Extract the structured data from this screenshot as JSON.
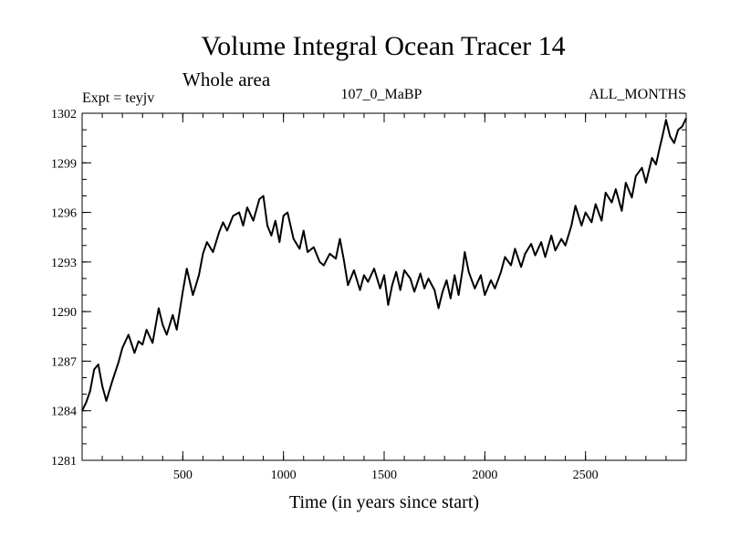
{
  "chart_data": {
    "type": "line",
    "title": "Volume Integral Ocean Tracer 14",
    "subtitle": "Whole area",
    "expt_label": "Expt = teyjv",
    "center_label": "107_0_MaBP",
    "right_label": "ALL_MONTHS",
    "xlabel": "Time (in years since start)",
    "ylabel": "",
    "xlim": [
      0,
      3000
    ],
    "ylim": [
      1281,
      1302
    ],
    "x_ticks": [
      500,
      1000,
      1500,
      2000,
      2500
    ],
    "y_ticks": [
      1281,
      1284,
      1287,
      1290,
      1293,
      1296,
      1299,
      1302
    ],
    "x_minor_step": 100,
    "y_minor_step": 1,
    "grid": false,
    "line_color": "#000000",
    "series": [
      {
        "name": "Volume Integral Ocean Tracer 14",
        "x": [
          0,
          20,
          40,
          60,
          80,
          100,
          120,
          150,
          180,
          200,
          230,
          260,
          280,
          300,
          320,
          350,
          380,
          400,
          420,
          450,
          470,
          500,
          520,
          550,
          580,
          600,
          620,
          650,
          680,
          700,
          720,
          750,
          780,
          800,
          820,
          850,
          880,
          900,
          920,
          940,
          960,
          980,
          1000,
          1020,
          1050,
          1080,
          1100,
          1120,
          1150,
          1180,
          1200,
          1230,
          1260,
          1280,
          1300,
          1320,
          1350,
          1380,
          1400,
          1420,
          1450,
          1480,
          1500,
          1520,
          1540,
          1560,
          1580,
          1600,
          1630,
          1650,
          1680,
          1700,
          1720,
          1750,
          1770,
          1790,
          1810,
          1830,
          1850,
          1870,
          1890,
          1900,
          1920,
          1950,
          1980,
          2000,
          2030,
          2050,
          2080,
          2100,
          2130,
          2150,
          2180,
          2200,
          2230,
          2250,
          2280,
          2300,
          2330,
          2350,
          2380,
          2400,
          2430,
          2450,
          2480,
          2500,
          2530,
          2550,
          2580,
          2600,
          2630,
          2650,
          2680,
          2700,
          2730,
          2750,
          2780,
          2800,
          2830,
          2850,
          2870,
          2880,
          2900,
          2920,
          2940,
          2960,
          2980,
          3000
        ],
        "values": [
          1284.0,
          1284.5,
          1285.2,
          1286.5,
          1286.8,
          1285.5,
          1284.6,
          1285.8,
          1286.9,
          1287.8,
          1288.6,
          1287.5,
          1288.2,
          1288.0,
          1288.9,
          1288.1,
          1290.2,
          1289.2,
          1288.6,
          1289.8,
          1288.9,
          1291.2,
          1292.6,
          1291.0,
          1292.2,
          1293.5,
          1294.2,
          1293.6,
          1294.8,
          1295.4,
          1294.9,
          1295.8,
          1296.0,
          1295.2,
          1296.3,
          1295.5,
          1296.8,
          1297.0,
          1295.2,
          1294.6,
          1295.5,
          1294.2,
          1295.8,
          1296.0,
          1294.4,
          1293.8,
          1294.9,
          1293.6,
          1293.9,
          1293.0,
          1292.8,
          1293.5,
          1293.2,
          1294.4,
          1293.1,
          1291.6,
          1292.5,
          1291.3,
          1292.2,
          1291.8,
          1292.6,
          1291.4,
          1292.2,
          1290.4,
          1291.6,
          1292.4,
          1291.3,
          1292.5,
          1292.0,
          1291.2,
          1292.3,
          1291.4,
          1292.0,
          1291.3,
          1290.2,
          1291.2,
          1291.9,
          1290.8,
          1292.2,
          1291.0,
          1292.6,
          1293.6,
          1292.4,
          1291.4,
          1292.2,
          1291.0,
          1291.9,
          1291.4,
          1292.4,
          1293.3,
          1292.8,
          1293.8,
          1292.7,
          1293.5,
          1294.1,
          1293.4,
          1294.2,
          1293.3,
          1294.6,
          1293.7,
          1294.4,
          1294.0,
          1295.2,
          1296.4,
          1295.2,
          1296.0,
          1295.4,
          1296.5,
          1295.5,
          1297.2,
          1296.6,
          1297.4,
          1296.1,
          1297.8,
          1296.9,
          1298.2,
          1298.7,
          1297.8,
          1299.3,
          1298.9,
          1300.0,
          1300.5,
          1301.6,
          1300.6,
          1300.2,
          1301.0,
          1301.2,
          1301.7
        ]
      }
    ]
  }
}
